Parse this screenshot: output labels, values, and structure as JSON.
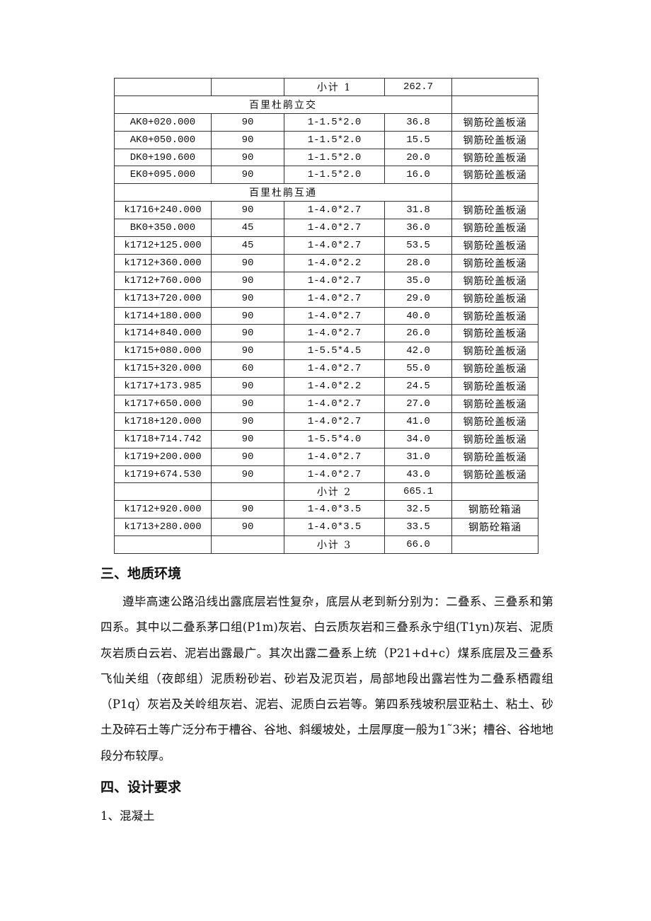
{
  "table": {
    "rows": [
      {
        "kind": "subtotal",
        "label": "小计 1",
        "value": "262.7"
      },
      {
        "kind": "section",
        "label": "百里杜鹃立交"
      },
      {
        "kind": "data",
        "cells": [
          "AK0+020.000",
          "90",
          "1-1.5*2.0",
          "36.8",
          "钢筋砼盖板涵"
        ]
      },
      {
        "kind": "data",
        "cells": [
          "AK0+050.000",
          "90",
          "1-1.5*2.0",
          "15.5",
          "钢筋砼盖板涵"
        ]
      },
      {
        "kind": "data",
        "cells": [
          "DK0+190.600",
          "90",
          "1-1.5*2.0",
          "20.0",
          "钢筋砼盖板涵"
        ]
      },
      {
        "kind": "data",
        "cells": [
          "EK0+095.000",
          "90",
          "1-1.5*2.0",
          "16.0",
          "钢筋砼盖板涵"
        ]
      },
      {
        "kind": "section",
        "label": "百里杜鹃互通"
      },
      {
        "kind": "data",
        "cells": [
          "k1716+240.000",
          "90",
          "1-4.0*2.7",
          "31.8",
          "钢筋砼盖板涵"
        ]
      },
      {
        "kind": "data",
        "cells": [
          "BK0+350.000",
          "45",
          "1-4.0*2.7",
          "36.0",
          "钢筋砼盖板涵"
        ]
      },
      {
        "kind": "data",
        "cells": [
          "k1712+125.000",
          "45",
          "1-4.0*2.7",
          "53.5",
          "钢筋砼盖板涵"
        ]
      },
      {
        "kind": "data",
        "cells": [
          "k1712+360.000",
          "90",
          "1-4.0*2.2",
          "28.0",
          "钢筋砼盖板涵"
        ]
      },
      {
        "kind": "data",
        "cells": [
          "k1712+760.000",
          "90",
          "1-4.0*2.7",
          "35.0",
          "钢筋砼盖板涵"
        ]
      },
      {
        "kind": "data",
        "cells": [
          "k1713+720.000",
          "90",
          "1-4.0*2.7",
          "29.0",
          "钢筋砼盖板涵"
        ]
      },
      {
        "kind": "data",
        "cells": [
          "k1714+180.000",
          "90",
          "1-4.0*2.7",
          "40.0",
          "钢筋砼盖板涵"
        ]
      },
      {
        "kind": "data",
        "cells": [
          "k1714+840.000",
          "90",
          "1-4.0*2.7",
          "26.0",
          "钢筋砼盖板涵"
        ]
      },
      {
        "kind": "data",
        "cells": [
          "k1715+080.000",
          "90",
          "1-5.5*4.5",
          "42.0",
          "钢筋砼盖板涵"
        ]
      },
      {
        "kind": "data",
        "cells": [
          "k1715+320.000",
          "60",
          "1-4.0*2.7",
          "55.0",
          "钢筋砼盖板涵"
        ]
      },
      {
        "kind": "data",
        "cells": [
          "k1717+173.985",
          "90",
          "1-4.0*2.2",
          "24.5",
          "钢筋砼盖板涵"
        ]
      },
      {
        "kind": "data",
        "cells": [
          "k1717+650.000",
          "90",
          "1-4.0*2.7",
          "27.0",
          "钢筋砼盖板涵"
        ]
      },
      {
        "kind": "data",
        "cells": [
          "k1718+120.000",
          "90",
          "1-4.0*2.7",
          "41.0",
          "钢筋砼盖板涵"
        ]
      },
      {
        "kind": "data",
        "cells": [
          "k1718+714.742",
          "90",
          "1-5.5*4.0",
          "34.0",
          "钢筋砼盖板涵"
        ]
      },
      {
        "kind": "data",
        "cells": [
          "k1719+200.000",
          "90",
          "1-4.0*2.7",
          "31.0",
          "钢筋砼盖板涵"
        ]
      },
      {
        "kind": "data",
        "cells": [
          "k1719+674.530",
          "90",
          "1-4.0*2.7",
          "43.0",
          "钢筋砼盖板涵"
        ]
      },
      {
        "kind": "subtotal",
        "label": "小计 2",
        "value": "665.1"
      },
      {
        "kind": "data",
        "cells": [
          "k1712+920.000",
          "90",
          "1-4.0*3.5",
          "32.5",
          "钢筋砼箱涵"
        ]
      },
      {
        "kind": "data",
        "cells": [
          "k1713+280.000",
          "90",
          "1-4.0*3.5",
          "33.5",
          "钢筋砼箱涵"
        ]
      },
      {
        "kind": "subtotal",
        "label": "小计 3",
        "value": "66.0"
      }
    ]
  },
  "section3": {
    "heading": "三、地质环境",
    "paragraph": "遵毕高速公路沿线出露底层岩性复杂，底层从老到新分别为：二叠系、三叠系和第四系。其中以二叠系茅口组(P1m)灰岩、白云质灰岩和三叠系永宁组(T1yn)灰岩、泥质灰岩质白云岩、泥岩出露最广。其次出露二叠系上统（P21+d+c）煤系底层及三叠系飞仙关组（夜郎组）泥质粉砂岩、砂岩及泥页岩，局部地段出露岩性为二叠系栖霞组（P1q）灰岩及关岭组灰岩、泥岩、泥质白云岩等。第四系残坡积层亚粘土、粘土、砂土及碎石土等广泛分布于槽谷、谷地、斜缓坡处，土层厚度一般为1˜3米；槽谷、谷地地段分布较厚。"
  },
  "section4": {
    "heading": "四、设计要求",
    "item1": "1、混凝土"
  }
}
